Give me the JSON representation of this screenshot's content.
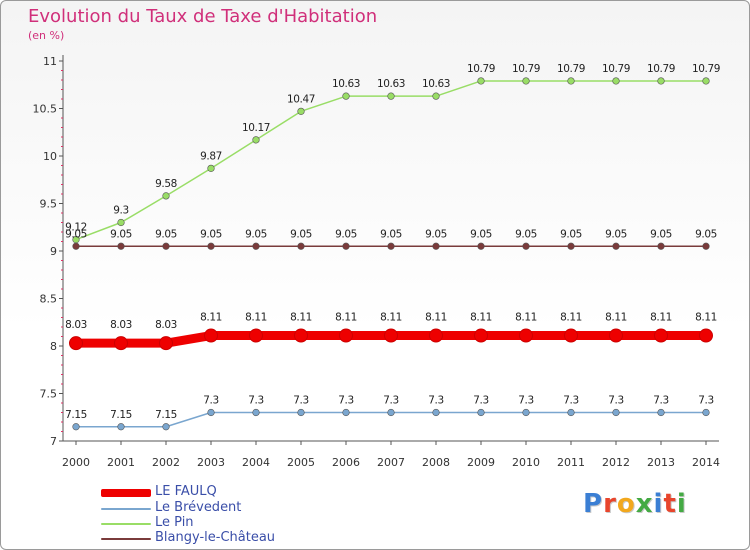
{
  "header": {
    "title": "Evolution du Taux de Taxe d'Habitation",
    "subtitle": "(en %)"
  },
  "logo": {
    "text": "Proxiti"
  },
  "colors": {
    "title": "#d02f7a",
    "le_faulq": "#ee0000",
    "le_brevedent": "#7aa6cf",
    "le_pin": "#99dd66",
    "blangy": "#7a3b3b"
  },
  "chart_data": {
    "type": "line",
    "title": "Evolution du Taux de Taxe d'Habitation",
    "subtitle": "(en %)",
    "xlabel": "",
    "ylabel": "",
    "x": [
      "2000",
      "2001",
      "2002",
      "2003",
      "2004",
      "2005",
      "2006",
      "2007",
      "2008",
      "2009",
      "2010",
      "2011",
      "2012",
      "2013",
      "2014"
    ],
    "ylim": [
      7,
      11
    ],
    "yticks": [
      "7",
      "7.5",
      "8",
      "8.5",
      "9",
      "9.5",
      "10",
      "10.5",
      "11"
    ],
    "grid": false,
    "legend_position": "bottom-left",
    "series": [
      {
        "name": "LE FAULQ",
        "color": "#ee0000",
        "values": [
          8.03,
          8.03,
          8.03,
          8.11,
          8.11,
          8.11,
          8.11,
          8.11,
          8.11,
          8.11,
          8.11,
          8.11,
          8.11,
          8.11,
          8.11
        ],
        "labels": [
          "8.03",
          "8.03",
          "8.03",
          "8.11",
          "8.11",
          "8.11",
          "8.11",
          "8.11",
          "8.11",
          "8.11",
          "8.11",
          "8.11",
          "8.11",
          "8.11",
          "8.11"
        ]
      },
      {
        "name": "Le Brévedent",
        "color": "#7aa6cf",
        "values": [
          7.15,
          7.15,
          7.15,
          7.3,
          7.3,
          7.3,
          7.3,
          7.3,
          7.3,
          7.3,
          7.3,
          7.3,
          7.3,
          7.3,
          7.3
        ],
        "labels": [
          "7.15",
          "7.15",
          "7.15",
          "7.3",
          "7.3",
          "7.3",
          "7.3",
          "7.3",
          "7.3",
          "7.3",
          "7.3",
          "7.3",
          "7.3",
          "7.3",
          "7.3"
        ]
      },
      {
        "name": "Le Pin",
        "color": "#99dd66",
        "values": [
          9.12,
          9.3,
          9.58,
          9.87,
          10.17,
          10.47,
          10.63,
          10.63,
          10.63,
          10.79,
          10.79,
          10.79,
          10.79,
          10.79,
          10.79
        ],
        "labels": [
          "9.12",
          "9.3",
          "9.58",
          "9.87",
          "10.17",
          "10.47",
          "10.63",
          "10.63",
          "10.63",
          "10.79",
          "10.79",
          "10.79",
          "10.79",
          "10.79",
          "10.79"
        ]
      },
      {
        "name": "Blangy-le-Château",
        "color": "#7a3b3b",
        "values": [
          9.05,
          9.05,
          9.05,
          9.05,
          9.05,
          9.05,
          9.05,
          9.05,
          9.05,
          9.05,
          9.05,
          9.05,
          9.05,
          9.05,
          9.05
        ],
        "labels": [
          "9.05",
          "9.05",
          "9.05",
          "9.05",
          "9.05",
          "9.05",
          "9.05",
          "9.05",
          "9.05",
          "9.05",
          "9.05",
          "9.05",
          "9.05",
          "9.05",
          "9.05"
        ]
      }
    ]
  }
}
